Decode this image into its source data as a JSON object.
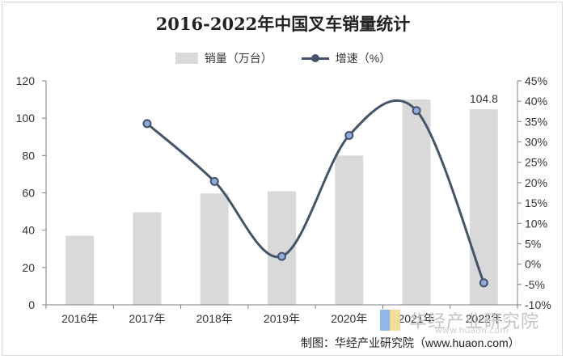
{
  "title": "2016-2022年中国叉车销量统计",
  "legend": {
    "bar_label": "销量（万台）",
    "line_label": "增速（%）"
  },
  "colors": {
    "bar": "#d9d9d9",
    "line": "#44546a",
    "marker_fill": "#8faadc"
  },
  "chart_data": {
    "type": "bar",
    "categories": [
      "2016年",
      "2017年",
      "2018年",
      "2019年",
      "2020年",
      "2021年",
      "2022年"
    ],
    "series": [
      {
        "name": "销量（万台）",
        "type": "bar",
        "axis": "left",
        "values": [
          37,
          49.6,
          59.7,
          60.9,
          80,
          110,
          104.8
        ]
      },
      {
        "name": "增速（%）",
        "type": "line",
        "axis": "right",
        "smooth": true,
        "values": [
          null,
          34.5,
          20.3,
          1.9,
          31.6,
          37.7,
          -4.6
        ]
      }
    ],
    "data_labels": [
      {
        "category": "2022年",
        "text": "104.8"
      }
    ],
    "y_left": {
      "min": 0,
      "max": 120,
      "ticks": [
        "0",
        "20",
        "40",
        "60",
        "80",
        "100",
        "120"
      ]
    },
    "y_right": {
      "min": -10,
      "max": 45,
      "ticks": [
        "-10%",
        "-5%",
        "0%",
        "5%",
        "10%",
        "15%",
        "20%",
        "25%",
        "30%",
        "35%",
        "40%",
        "45%"
      ]
    },
    "grid": false,
    "legend_position": "top"
  },
  "watermark": {
    "text": "华经产业研究院",
    "url": "www.huaon.com"
  },
  "source": "制图：华经产业研究院（www.huaon.com）"
}
